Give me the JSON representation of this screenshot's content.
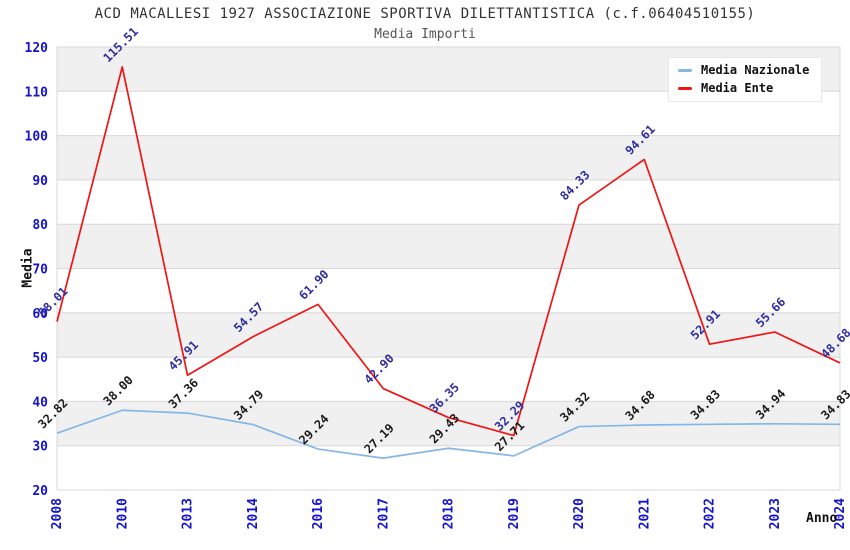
{
  "header": {
    "title": "ACD MACALLESI 1927 ASSOCIAZIONE SPORTIVA DILETTANTISTICA (c.f.06404510155)",
    "subtitle": "Media Importi"
  },
  "chart_data": {
    "type": "line",
    "title": "ACD MACALLESI 1927 ASSOCIAZIONE SPORTIVA DILETTANTISTICA (c.f.06404510155)",
    "subtitle": "Media Importi",
    "categories": [
      "2008",
      "2010",
      "2013",
      "2014",
      "2016",
      "2017",
      "2018",
      "2019",
      "2020",
      "2021",
      "2022",
      "2023",
      "2024"
    ],
    "series": [
      {
        "name": "Media Nazionale",
        "color": "#85b7e6",
        "label_color": "#1a1a1a",
        "values": [
          32.82,
          38.0,
          37.36,
          34.79,
          29.24,
          27.19,
          29.43,
          27.71,
          34.32,
          34.68,
          34.83,
          34.94,
          34.83
        ]
      },
      {
        "name": "Media Ente",
        "color": "#ee1515",
        "label_color": "#2e2e9e",
        "values": [
          58.01,
          115.51,
          45.91,
          54.57,
          61.9,
          42.9,
          36.35,
          32.29,
          84.33,
          94.61,
          52.91,
          55.66,
          48.68
        ]
      }
    ],
    "xlabel": "Anno",
    "ylabel": "Media",
    "ylim": [
      20,
      120
    ],
    "y_step": 10,
    "grid": true,
    "legend_position": "top-right",
    "tick_label_color": "#1414cd",
    "band_color": "#f0f0f0",
    "grid_color": "#d8d8d8"
  }
}
